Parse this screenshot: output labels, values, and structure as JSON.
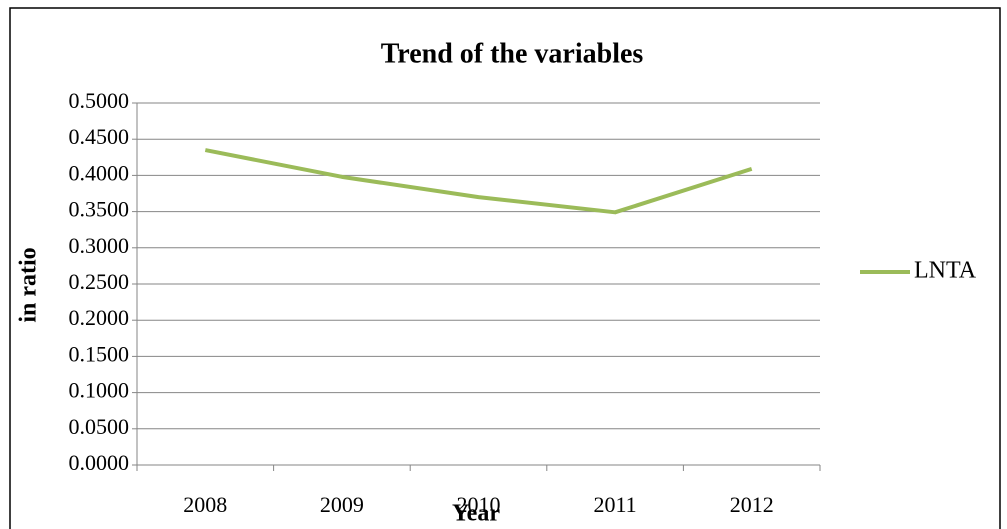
{
  "chart_data": {
    "type": "line",
    "title": "Trend of the variables",
    "x_label": "Year",
    "y_label": "in ratio",
    "categories": [
      "2008",
      "2009",
      "2010",
      "2011",
      "2012"
    ],
    "series": [
      {
        "name": "LNTA",
        "color": "#9bbb59",
        "values": [
          0.435,
          0.398,
          0.37,
          0.349,
          0.409
        ]
      }
    ],
    "ylim": [
      0,
      0.5
    ],
    "yticks": [
      {
        "value": 0,
        "label": "0.0000"
      },
      {
        "value": 0.05,
        "label": "0.0500"
      },
      {
        "value": 0.1,
        "label": "0.1000"
      },
      {
        "value": 0.15,
        "label": "0.1500"
      },
      {
        "value": 0.2,
        "label": "0.2000"
      },
      {
        "value": 0.25,
        "label": "0.2500"
      },
      {
        "value": 0.3,
        "label": "0.3000"
      },
      {
        "value": 0.35,
        "label": "0.3500"
      },
      {
        "value": 0.4,
        "label": "0.4000"
      },
      {
        "value": 0.45,
        "label": "0.4500"
      },
      {
        "value": 0.5,
        "label": "0.5000"
      }
    ],
    "grid": true,
    "legend": "right"
  }
}
